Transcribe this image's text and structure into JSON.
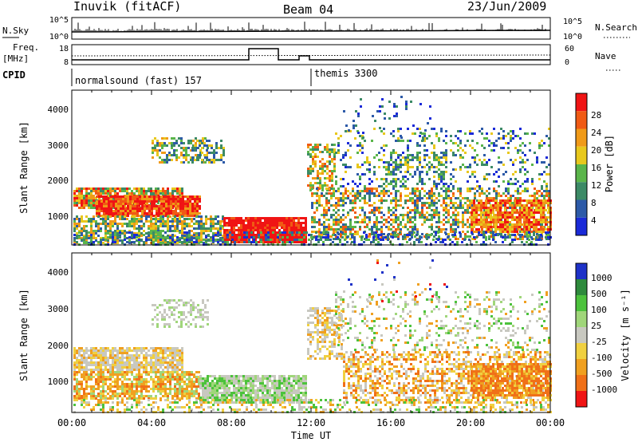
{
  "header": {
    "station": "Inuvik (fitACF)",
    "beam": "Beam 04",
    "date": "23/Jun/2009"
  },
  "sky_panel": {
    "left_label": "N.Sky",
    "left_ticks": [
      "10^5",
      "10^0"
    ],
    "right_ticks": [
      "10^5",
      "10^0"
    ],
    "right_label": "N.Search"
  },
  "freq_panel": {
    "left_label_line1": "Freq.",
    "left_label_line2": "[MHz]",
    "left_ticks": [
      "18",
      "8"
    ],
    "right_ticks": [
      "60",
      "0"
    ],
    "right_label": "Nave"
  },
  "cpid_panel": {
    "label": "CPID",
    "modes": [
      {
        "name": "normalsound (fast) 157",
        "start_hour": 0
      },
      {
        "name": "themis 3300",
        "start_hour": 12
      }
    ]
  },
  "chart_data": [
    {
      "type": "heatmap",
      "quantity": "Power",
      "ylabel": "Slant Range [km]",
      "xlabel": "Time UT",
      "y_range_km": [
        180,
        4500
      ],
      "y_ticks": [
        "1000",
        "2000",
        "3000",
        "4000"
      ],
      "x_range_hours": [
        0,
        24
      ],
      "x_ticks": [
        "00:00",
        "04:00",
        "08:00",
        "12:00",
        "16:00",
        "20:00",
        "00:00"
      ],
      "colorbar_label": "Power [dB]",
      "colorbar_ticks": [
        "4",
        "8",
        "12",
        "16",
        "20",
        "24",
        "28"
      ],
      "colors": [
        "#1a2ad8",
        "#2d5aa8",
        "#3c8a66",
        "#5ab54a",
        "#e8c81c",
        "#f09a18",
        "#f05a14",
        "#f01414"
      ]
    },
    {
      "type": "heatmap",
      "quantity": "Velocity",
      "ylabel": "Slant Range [km]",
      "xlabel": "Time UT",
      "y_range_km": [
        180,
        4500
      ],
      "y_ticks": [
        "1000",
        "2000",
        "3000",
        "4000"
      ],
      "x_range_hours": [
        0,
        24
      ],
      "x_ticks": [
        "00:00",
        "04:00",
        "08:00",
        "12:00",
        "16:00",
        "20:00",
        "00:00"
      ],
      "colorbar_label": "Velocity [m s⁻¹]",
      "colorbar_ticks": [
        "1000",
        "500",
        "100",
        "25",
        "-25",
        "-100",
        "-500",
        "-1000"
      ],
      "colors": [
        "#1e32c8",
        "#2e8a3c",
        "#4cc23c",
        "#a0d67a",
        "#c8c8c0",
        "#f0d040",
        "#f0a020",
        "#f07018",
        "#f01414"
      ]
    }
  ]
}
